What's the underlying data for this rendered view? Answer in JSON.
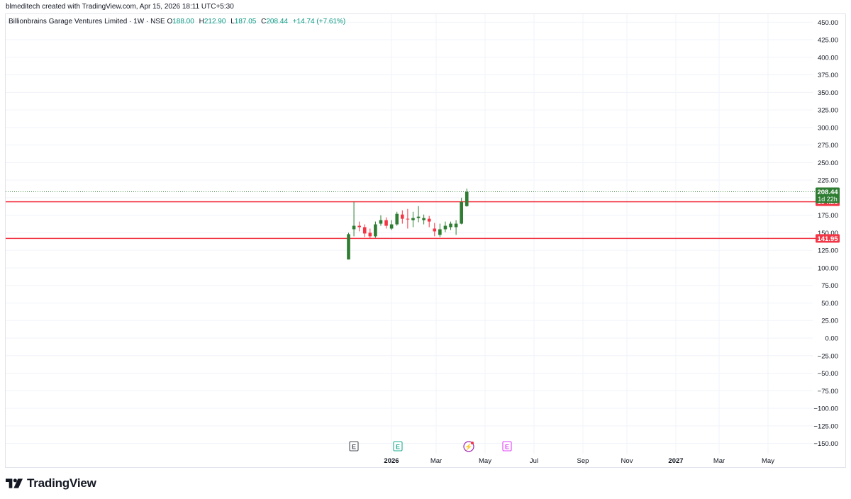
{
  "header": {
    "created_by": "blmeditech created with TradingView.com, Apr 15, 2026 18:11 UTC+5:30"
  },
  "legend": {
    "symbol": "Billionbrains Garage Ventures Limited · 1W · NSE",
    "o_label": "O",
    "o_value": "188.00",
    "h_label": "H",
    "h_value": "212.90",
    "l_label": "L",
    "l_value": "187.05",
    "c_label": "C",
    "c_value": "208.44",
    "change": "+14.74 (+7.61%)"
  },
  "brand": {
    "name": "TradingView"
  },
  "colors": {
    "up": "#2e7d32",
    "down": "#f23645",
    "level": "#f23645",
    "grid": "#f0f3fa",
    "axis_text": "#131722"
  },
  "chart_data": {
    "type": "candlestick",
    "interval": "1W",
    "y_axis": {
      "ticks": [
        "450.00",
        "425.00",
        "400.00",
        "375.00",
        "350.00",
        "325.00",
        "300.00",
        "275.00",
        "250.00",
        "225.00",
        "200.00",
        "175.00",
        "150.00",
        "125.00",
        "100.00",
        "75.00",
        "50.00",
        "25.00",
        "0.00",
        "−25.00",
        "−50.00",
        "−75.00",
        "−100.00",
        "−125.00",
        "−150.00"
      ],
      "range": [
        -162,
        462
      ],
      "position": "right"
    },
    "x_axis": {
      "labels": [
        "2026",
        "Mar",
        "May",
        "Jul",
        "Sep",
        "Nov",
        "2027",
        "Mar",
        "May"
      ],
      "bold": [
        "2026",
        "2027"
      ]
    },
    "candles": [
      {
        "o": 112,
        "h": 150,
        "l": 112,
        "c": 148
      },
      {
        "o": 155,
        "h": 194.25,
        "l": 145,
        "c": 160
      },
      {
        "o": 160,
        "h": 166,
        "l": 152,
        "c": 158
      },
      {
        "o": 158,
        "h": 162,
        "l": 144,
        "c": 149
      },
      {
        "o": 150,
        "h": 156,
        "l": 141.95,
        "c": 145
      },
      {
        "o": 145,
        "h": 166,
        "l": 143,
        "c": 162
      },
      {
        "o": 163,
        "h": 175,
        "l": 160,
        "c": 168
      },
      {
        "o": 168,
        "h": 172,
        "l": 156,
        "c": 160
      },
      {
        "o": 156,
        "h": 168,
        "l": 154,
        "c": 162
      },
      {
        "o": 162,
        "h": 180,
        "l": 160,
        "c": 177
      },
      {
        "o": 176,
        "h": 182,
        "l": 163,
        "c": 170
      },
      {
        "o": 170,
        "h": 184,
        "l": 156,
        "c": 169
      },
      {
        "o": 168,
        "h": 180,
        "l": 158,
        "c": 171
      },
      {
        "o": 171,
        "h": 188,
        "l": 165,
        "c": 173
      },
      {
        "o": 168,
        "h": 176,
        "l": 162,
        "c": 171
      },
      {
        "o": 170,
        "h": 174,
        "l": 158,
        "c": 166
      },
      {
        "o": 156,
        "h": 164,
        "l": 145,
        "c": 152
      },
      {
        "o": 147,
        "h": 163,
        "l": 144,
        "c": 155
      },
      {
        "o": 155,
        "h": 166,
        "l": 151,
        "c": 160
      },
      {
        "o": 158,
        "h": 166,
        "l": 154,
        "c": 163
      },
      {
        "o": 158,
        "h": 168,
        "l": 147,
        "c": 163
      },
      {
        "o": 163,
        "h": 200,
        "l": 162,
        "c": 194
      },
      {
        "o": 188,
        "h": 212.9,
        "l": 187.05,
        "c": 208.44
      }
    ],
    "levels": [
      {
        "value": 194.25,
        "label": "194.25"
      },
      {
        "value": 141.95,
        "label": "141.95"
      }
    ],
    "last_price": {
      "value": 208.44,
      "label": "208.44",
      "countdown": "1d 22h"
    },
    "events": [
      {
        "type": "earnings",
        "glyph": "E",
        "status": "past"
      },
      {
        "type": "earnings",
        "glyph": "E",
        "status": "past-highlight"
      },
      {
        "type": "dividend",
        "glyph": "⚡",
        "status": "upcoming"
      },
      {
        "type": "earnings",
        "glyph": "E",
        "status": "future"
      }
    ]
  }
}
